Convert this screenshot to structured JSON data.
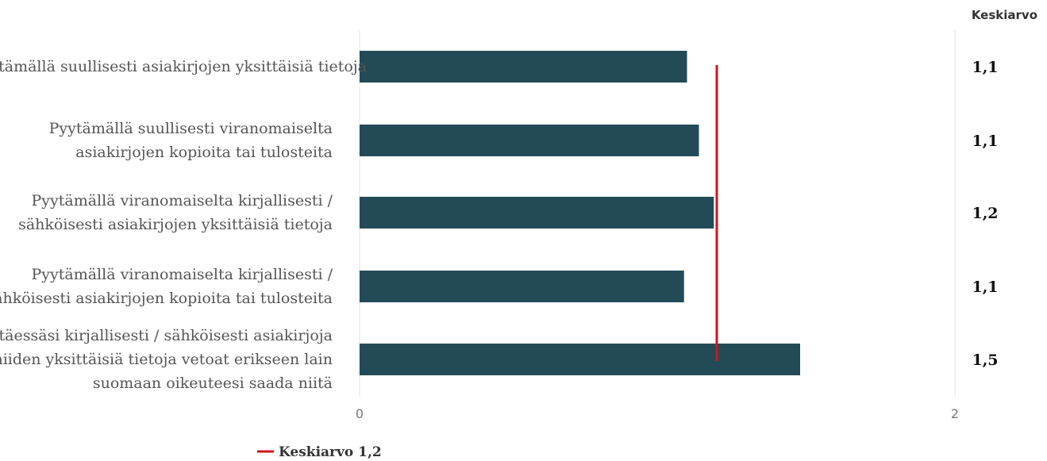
{
  "chart_data": {
    "type": "bar",
    "orientation": "horizontal",
    "categories": [
      [
        "Pyytämällä suullisesti asiakirjojen yksittäisiä tietoja"
      ],
      [
        "Pyytämällä suullisesti viranomaiselta",
        "asiakirjojen kopioita tai tulosteita"
      ],
      [
        "Pyytämällä viranomaiselta kirjallisesti /",
        "sähköisesti asiakirjojen yksittäisiä tietoja"
      ],
      [
        "Pyytämällä viranomaiselta kirjallisesti /",
        "sähköisesti asiakirjojen kopioita tai tulosteita"
      ],
      [
        "Pyytäessäsi kirjallisesti / sähköisesti asiakirjoja",
        "tai niiden yksittäisiä tietoja vetoat erikseen lain",
        "suomaan oikeuteesi saada niitä"
      ]
    ],
    "values": [
      1.1,
      1.14,
      1.19,
      1.09,
      1.48
    ],
    "value_labels": [
      "1,1",
      "1,1",
      "1,2",
      "1,1",
      "1,5"
    ],
    "value_column_header": "Keskiarvo",
    "xlim": [
      0,
      2
    ],
    "xticks": [
      0,
      2
    ],
    "xtick_labels": [
      "0",
      "2"
    ],
    "reference_line": {
      "value": 1.2,
      "label": "Keskiarvo 1,2",
      "color": "#d0141c"
    },
    "bar_color": "#234b57",
    "grid": false,
    "legend": "bottom-left"
  }
}
